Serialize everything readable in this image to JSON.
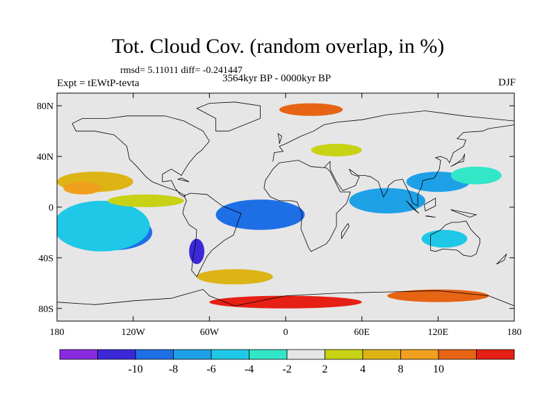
{
  "title": "Tot. Cloud Cov. (random overlap, in %)",
  "stats_text": "rmsd= 5.11011 diff= -0.241447",
  "experiment_label": "Expt = tEWtP-tevta",
  "period_label": "3564kyr BP - 0000kyr BP",
  "season_label": "DJF",
  "map": {
    "projection": "cylindrical-equidistant",
    "lon_range": [
      -180,
      180
    ],
    "lat_range": [
      -90,
      90
    ],
    "x_ticks": [
      {
        "lon": -180,
        "label": "180"
      },
      {
        "lon": -120,
        "label": "120W"
      },
      {
        "lon": -60,
        "label": "60W"
      },
      {
        "lon": 0,
        "label": "0"
      },
      {
        "lon": 60,
        "label": "60E"
      },
      {
        "lon": 120,
        "label": "120E"
      },
      {
        "lon": 180,
        "label": "180"
      }
    ],
    "y_ticks": [
      {
        "lat": 80,
        "label": "80N"
      },
      {
        "lat": 40,
        "label": "40N"
      },
      {
        "lat": 0,
        "label": "0"
      },
      {
        "lat": -40,
        "label": "40S"
      },
      {
        "lat": -80,
        "label": "80S"
      }
    ],
    "background_color": "#e6e6e6",
    "coastline_color": "#000000",
    "anomaly_patches": [
      {
        "lon": -150,
        "lat": -12,
        "rlon": 20,
        "rlat": 10,
        "bin": 0
      },
      {
        "lon": -135,
        "lat": -20,
        "rlon": 30,
        "rlat": 14,
        "bin": 2
      },
      {
        "lon": -145,
        "lat": -15,
        "rlon": 38,
        "rlat": 20,
        "bin": 4
      },
      {
        "lon": -10,
        "lat": -5,
        "rlon": 22,
        "rlat": 8,
        "bin": 0
      },
      {
        "lon": -20,
        "lat": -6,
        "rlon": 35,
        "rlat": 12,
        "bin": 2
      },
      {
        "lon": 80,
        "lat": 5,
        "rlon": 30,
        "rlat": 10,
        "bin": 3
      },
      {
        "lon": 120,
        "lat": 20,
        "rlon": 25,
        "rlat": 8,
        "bin": 3
      },
      {
        "lon": 150,
        "lat": 25,
        "rlon": 20,
        "rlat": 7,
        "bin": 5
      },
      {
        "lon": 125,
        "lat": -25,
        "rlon": 18,
        "rlat": 7,
        "bin": 4
      },
      {
        "lon": -70,
        "lat": -35,
        "rlon": 6,
        "rlat": 10,
        "bin": 1
      },
      {
        "lon": -150,
        "lat": 20,
        "rlon": 30,
        "rlat": 8,
        "bin": 8
      },
      {
        "lon": -160,
        "lat": 15,
        "rlon": 15,
        "rlat": 5,
        "bin": 9
      },
      {
        "lon": -40,
        "lat": -55,
        "rlon": 30,
        "rlat": 6,
        "bin": 8
      },
      {
        "lon": 0,
        "lat": -75,
        "rlon": 60,
        "rlat": 5,
        "bin": 11
      },
      {
        "lon": 120,
        "lat": -70,
        "rlon": 40,
        "rlat": 5,
        "bin": 10
      },
      {
        "lon": 20,
        "lat": 77,
        "rlon": 25,
        "rlat": 5,
        "bin": 10
      },
      {
        "lon": -110,
        "lat": 5,
        "rlon": 30,
        "rlat": 5,
        "bin": 7
      },
      {
        "lon": 40,
        "lat": 45,
        "rlon": 20,
        "rlat": 5,
        "bin": 7
      },
      {
        "lon": -60,
        "lat": 45,
        "rlon": 15,
        "rlat": 6,
        "bin": 6
      },
      {
        "lon": 60,
        "lat": -40,
        "rlon": 25,
        "rlat": 6,
        "bin": 6
      }
    ]
  },
  "colorbar": {
    "colors": [
      "#8a2be2",
      "#3b28d8",
      "#1e6ee6",
      "#1ea0e6",
      "#1ec8e6",
      "#32e6c8",
      "#e6e6e6",
      "#c8d214",
      "#dcb414",
      "#f0a01e",
      "#e66414",
      "#e62014"
    ],
    "labels": [
      "-10",
      "-8",
      "-6",
      "-4",
      "-2",
      "2",
      "4",
      "8",
      "10"
    ]
  }
}
